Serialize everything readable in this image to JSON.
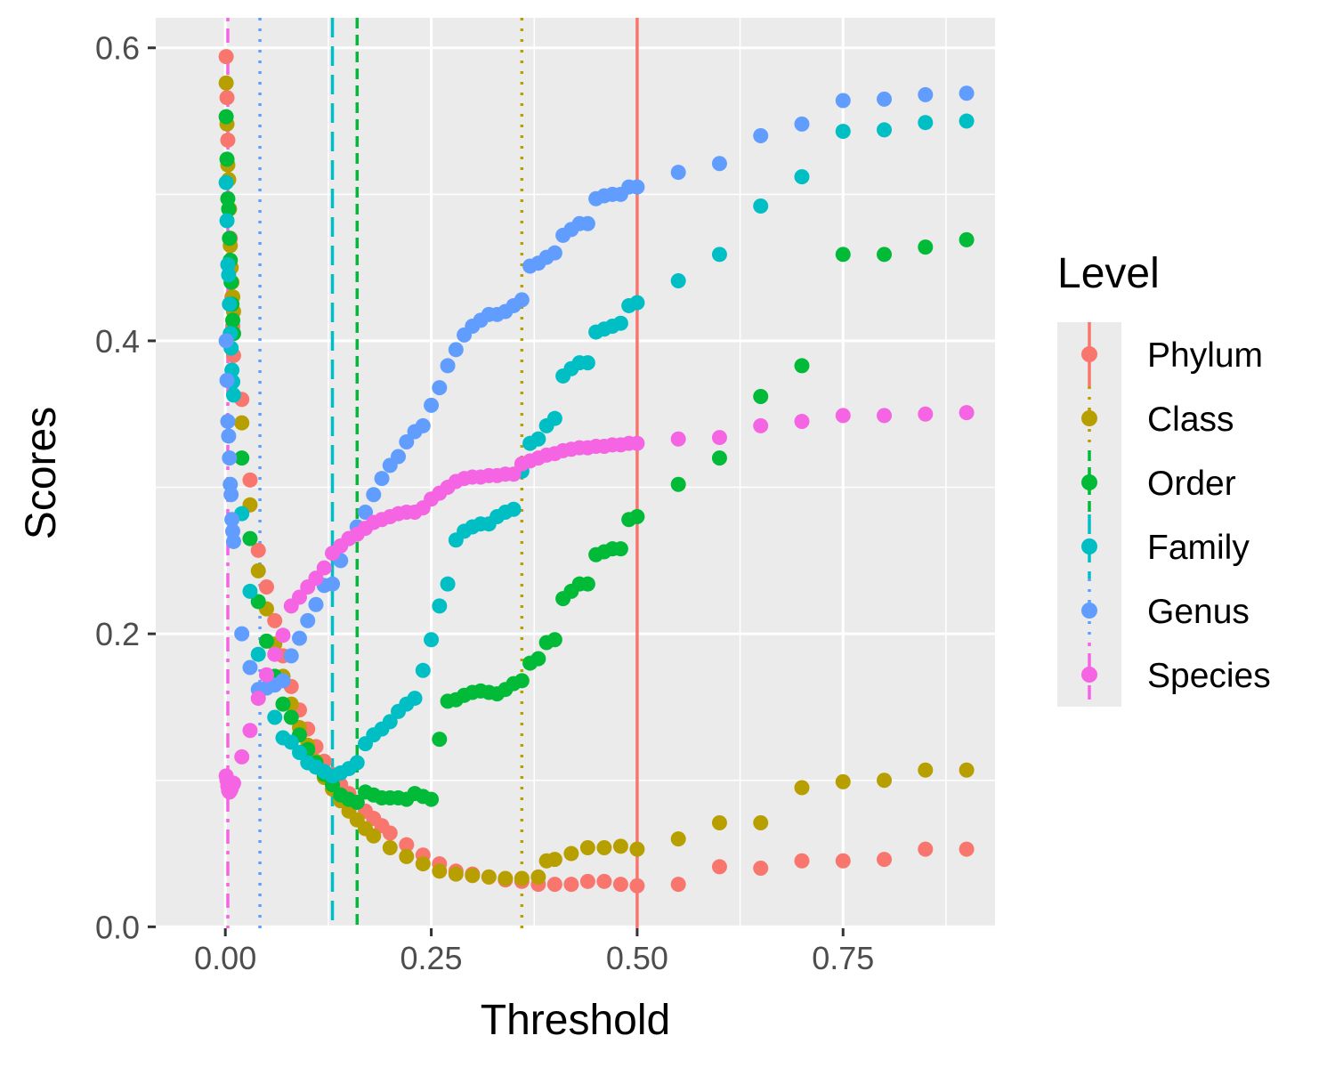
{
  "chart_data": {
    "type": "scatter",
    "title": "",
    "xlabel": "Threshold",
    "ylabel": "Scores",
    "xlim": [
      -0.0845,
      0.9345
    ],
    "ylim": [
      -0.001,
      0.6205
    ],
    "x_ticks": [
      0.0,
      0.25,
      0.5,
      0.75
    ],
    "x_tick_labels": [
      "0.00",
      "0.25",
      "0.50",
      "0.75"
    ],
    "y_ticks": [
      0.0,
      0.2,
      0.4,
      0.6
    ],
    "y_tick_labels": [
      "0.0",
      "0.2",
      "0.4",
      "0.6"
    ],
    "grid": true,
    "legend": {
      "title": "Level",
      "position": "right"
    },
    "series": [
      {
        "name": "Phylum",
        "color": "#F8766D",
        "vline": 0.5,
        "linetype": "solid",
        "x": [
          0.001,
          0.002,
          0.003,
          0.004,
          0.005,
          0.006,
          0.007,
          0.008,
          0.009,
          0.01,
          0.02,
          0.03,
          0.04,
          0.05,
          0.06,
          0.07,
          0.08,
          0.09,
          0.1,
          0.11,
          0.12,
          0.13,
          0.14,
          0.15,
          0.16,
          0.17,
          0.18,
          0.19,
          0.2,
          0.22,
          0.24,
          0.26,
          0.28,
          0.3,
          0.32,
          0.34,
          0.36,
          0.38,
          0.4,
          0.42,
          0.44,
          0.46,
          0.48,
          0.5,
          0.55,
          0.6,
          0.65,
          0.7,
          0.75,
          0.8,
          0.85,
          0.9
        ],
        "y": [
          0.594,
          0.566,
          0.537,
          0.51,
          0.49,
          0.47,
          0.45,
          0.43,
          0.41,
          0.39,
          0.36,
          0.305,
          0.257,
          0.232,
          0.209,
          0.185,
          0.164,
          0.148,
          0.135,
          0.123,
          0.113,
          0.104,
          0.097,
          0.091,
          0.085,
          0.079,
          0.074,
          0.069,
          0.064,
          0.056,
          0.049,
          0.043,
          0.038,
          0.036,
          0.034,
          0.032,
          0.031,
          0.029,
          0.029,
          0.029,
          0.031,
          0.031,
          0.029,
          0.028,
          0.029,
          0.041,
          0.04,
          0.045,
          0.045,
          0.046,
          0.053,
          0.053
        ]
      },
      {
        "name": "Class",
        "color": "#B79F00",
        "vline": 0.36,
        "linetype": "dotted",
        "x": [
          0.001,
          0.002,
          0.003,
          0.004,
          0.005,
          0.006,
          0.007,
          0.008,
          0.009,
          0.01,
          0.02,
          0.03,
          0.04,
          0.05,
          0.06,
          0.07,
          0.08,
          0.09,
          0.1,
          0.11,
          0.12,
          0.13,
          0.14,
          0.15,
          0.16,
          0.17,
          0.18,
          0.2,
          0.22,
          0.24,
          0.26,
          0.28,
          0.3,
          0.32,
          0.34,
          0.36,
          0.38,
          0.39,
          0.4,
          0.42,
          0.44,
          0.46,
          0.48,
          0.5,
          0.55,
          0.6,
          0.65,
          0.7,
          0.75,
          0.8,
          0.85,
          0.9
        ],
        "y": [
          0.576,
          0.548,
          0.52,
          0.51,
          0.49,
          0.465,
          0.45,
          0.44,
          0.43,
          0.42,
          0.344,
          0.288,
          0.243,
          0.217,
          0.193,
          0.171,
          0.152,
          0.136,
          0.124,
          0.113,
          0.102,
          0.094,
          0.086,
          0.079,
          0.073,
          0.067,
          0.062,
          0.054,
          0.048,
          0.043,
          0.038,
          0.036,
          0.035,
          0.034,
          0.033,
          0.033,
          0.034,
          0.045,
          0.046,
          0.05,
          0.054,
          0.054,
          0.055,
          0.053,
          0.06,
          0.071,
          0.071,
          0.095,
          0.099,
          0.1,
          0.107,
          0.107
        ]
      },
      {
        "name": "Order",
        "color": "#00BA38",
        "vline": 0.16,
        "linetype": "dashed",
        "x": [
          0.001,
          0.002,
          0.003,
          0.004,
          0.005,
          0.006,
          0.007,
          0.008,
          0.009,
          0.01,
          0.02,
          0.03,
          0.04,
          0.05,
          0.06,
          0.07,
          0.08,
          0.09,
          0.1,
          0.11,
          0.12,
          0.13,
          0.14,
          0.15,
          0.16,
          0.17,
          0.18,
          0.19,
          0.2,
          0.21,
          0.22,
          0.23,
          0.24,
          0.25,
          0.26,
          0.27,
          0.28,
          0.29,
          0.3,
          0.31,
          0.32,
          0.33,
          0.34,
          0.35,
          0.36,
          0.37,
          0.38,
          0.39,
          0.4,
          0.41,
          0.42,
          0.43,
          0.44,
          0.45,
          0.46,
          0.47,
          0.48,
          0.49,
          0.5,
          0.55,
          0.6,
          0.65,
          0.7,
          0.75,
          0.8,
          0.85,
          0.9
        ],
        "y": [
          0.553,
          0.524,
          0.497,
          0.49,
          0.47,
          0.455,
          0.44,
          0.425,
          0.414,
          0.405,
          0.32,
          0.265,
          0.222,
          0.195,
          0.171,
          0.152,
          0.143,
          0.131,
          0.121,
          0.112,
          0.104,
          0.097,
          0.09,
          0.087,
          0.085,
          0.092,
          0.09,
          0.088,
          0.088,
          0.088,
          0.087,
          0.091,
          0.089,
          0.087,
          0.128,
          0.154,
          0.155,
          0.158,
          0.16,
          0.161,
          0.16,
          0.159,
          0.162,
          0.166,
          0.168,
          0.18,
          0.183,
          0.194,
          0.196,
          0.224,
          0.229,
          0.234,
          0.234,
          0.254,
          0.256,
          0.258,
          0.258,
          0.278,
          0.28,
          0.302,
          0.32,
          0.362,
          0.383,
          0.459,
          0.459,
          0.464,
          0.469
        ]
      },
      {
        "name": "Family",
        "color": "#00BFC4",
        "vline": 0.13,
        "linetype": "longdash",
        "x": [
          0.001,
          0.002,
          0.003,
          0.004,
          0.005,
          0.006,
          0.007,
          0.008,
          0.009,
          0.01,
          0.02,
          0.03,
          0.04,
          0.05,
          0.06,
          0.07,
          0.08,
          0.09,
          0.1,
          0.11,
          0.12,
          0.13,
          0.14,
          0.15,
          0.16,
          0.17,
          0.18,
          0.19,
          0.2,
          0.21,
          0.22,
          0.23,
          0.24,
          0.25,
          0.26,
          0.27,
          0.28,
          0.29,
          0.3,
          0.31,
          0.32,
          0.33,
          0.34,
          0.35,
          0.36,
          0.37,
          0.38,
          0.39,
          0.4,
          0.41,
          0.42,
          0.43,
          0.44,
          0.45,
          0.46,
          0.47,
          0.48,
          0.49,
          0.5,
          0.55,
          0.6,
          0.65,
          0.7,
          0.75,
          0.8,
          0.85,
          0.9
        ],
        "y": [
          0.508,
          0.482,
          0.452,
          0.445,
          0.425,
          0.405,
          0.395,
          0.38,
          0.372,
          0.363,
          0.282,
          0.229,
          0.186,
          0.163,
          0.143,
          0.129,
          0.126,
          0.119,
          0.112,
          0.109,
          0.106,
          0.103,
          0.105,
          0.108,
          0.112,
          0.125,
          0.131,
          0.135,
          0.14,
          0.147,
          0.152,
          0.156,
          0.175,
          0.196,
          0.219,
          0.234,
          0.264,
          0.27,
          0.273,
          0.275,
          0.275,
          0.28,
          0.283,
          0.285,
          0.311,
          0.33,
          0.333,
          0.342,
          0.347,
          0.376,
          0.381,
          0.385,
          0.385,
          0.406,
          0.408,
          0.41,
          0.412,
          0.424,
          0.426,
          0.441,
          0.459,
          0.492,
          0.512,
          0.543,
          0.544,
          0.549,
          0.55
        ]
      },
      {
        "name": "Genus",
        "color": "#619CFF",
        "vline": 0.042,
        "linetype": "dotted",
        "x": [
          0.001,
          0.002,
          0.003,
          0.004,
          0.005,
          0.006,
          0.007,
          0.008,
          0.009,
          0.01,
          0.02,
          0.03,
          0.04,
          0.05,
          0.06,
          0.07,
          0.08,
          0.09,
          0.1,
          0.11,
          0.12,
          0.13,
          0.14,
          0.15,
          0.16,
          0.17,
          0.18,
          0.19,
          0.2,
          0.21,
          0.22,
          0.23,
          0.24,
          0.25,
          0.26,
          0.27,
          0.28,
          0.29,
          0.3,
          0.31,
          0.32,
          0.33,
          0.34,
          0.35,
          0.36,
          0.37,
          0.38,
          0.39,
          0.4,
          0.41,
          0.42,
          0.43,
          0.44,
          0.45,
          0.46,
          0.47,
          0.48,
          0.49,
          0.5,
          0.55,
          0.6,
          0.65,
          0.7,
          0.75,
          0.8,
          0.85,
          0.9
        ],
        "y": [
          0.4,
          0.373,
          0.345,
          0.335,
          0.32,
          0.302,
          0.295,
          0.278,
          0.27,
          0.263,
          0.2,
          0.177,
          0.162,
          0.163,
          0.165,
          0.168,
          0.185,
          0.197,
          0.209,
          0.22,
          0.233,
          0.234,
          0.25,
          0.265,
          0.273,
          0.283,
          0.295,
          0.306,
          0.315,
          0.321,
          0.331,
          0.338,
          0.342,
          0.356,
          0.368,
          0.383,
          0.394,
          0.404,
          0.41,
          0.414,
          0.418,
          0.418,
          0.42,
          0.424,
          0.428,
          0.451,
          0.453,
          0.457,
          0.46,
          0.472,
          0.476,
          0.48,
          0.48,
          0.497,
          0.499,
          0.5,
          0.5,
          0.505,
          0.505,
          0.515,
          0.521,
          0.54,
          0.548,
          0.564,
          0.565,
          0.568,
          0.569
        ]
      },
      {
        "name": "Species",
        "color": "#F564E3",
        "vline": 0.003,
        "linetype": "dotdash",
        "x": [
          0.001,
          0.002,
          0.003,
          0.004,
          0.005,
          0.006,
          0.007,
          0.008,
          0.009,
          0.01,
          0.02,
          0.03,
          0.04,
          0.05,
          0.06,
          0.07,
          0.08,
          0.09,
          0.1,
          0.11,
          0.12,
          0.13,
          0.14,
          0.15,
          0.16,
          0.17,
          0.18,
          0.19,
          0.2,
          0.21,
          0.22,
          0.23,
          0.24,
          0.25,
          0.26,
          0.27,
          0.28,
          0.29,
          0.3,
          0.31,
          0.32,
          0.33,
          0.34,
          0.35,
          0.36,
          0.37,
          0.38,
          0.39,
          0.4,
          0.41,
          0.42,
          0.43,
          0.44,
          0.45,
          0.46,
          0.47,
          0.48,
          0.49,
          0.5,
          0.55,
          0.6,
          0.65,
          0.7,
          0.75,
          0.8,
          0.85,
          0.9
        ],
        "y": [
          0.103,
          0.1,
          0.096,
          0.093,
          0.092,
          0.093,
          0.094,
          0.096,
          0.097,
          0.098,
          0.116,
          0.134,
          0.156,
          0.172,
          0.186,
          0.199,
          0.219,
          0.225,
          0.232,
          0.238,
          0.245,
          0.255,
          0.26,
          0.265,
          0.268,
          0.272,
          0.276,
          0.278,
          0.28,
          0.282,
          0.283,
          0.283,
          0.286,
          0.292,
          0.296,
          0.3,
          0.304,
          0.306,
          0.307,
          0.307,
          0.308,
          0.308,
          0.309,
          0.309,
          0.316,
          0.318,
          0.32,
          0.322,
          0.323,
          0.325,
          0.326,
          0.327,
          0.327,
          0.328,
          0.328,
          0.329,
          0.329,
          0.33,
          0.33,
          0.333,
          0.334,
          0.342,
          0.345,
          0.349,
          0.349,
          0.35,
          0.351
        ]
      }
    ]
  }
}
